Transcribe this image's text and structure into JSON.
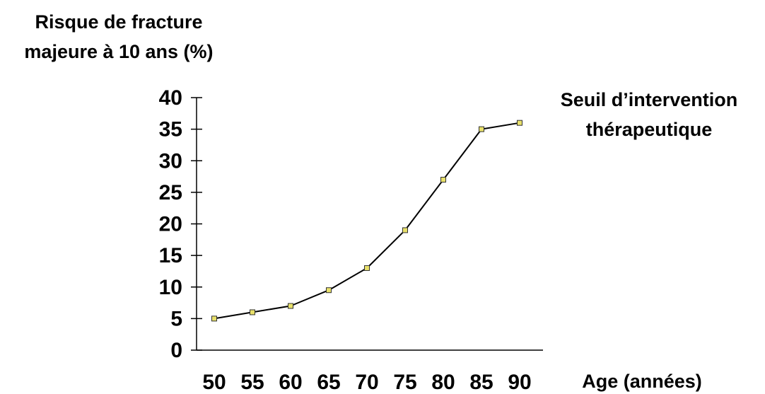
{
  "chart_data": {
    "type": "line",
    "title_lines": [
      "Risque de fracture",
      "majeure à 10 ans (%)"
    ],
    "xlabel": "Age (années)",
    "annotation_lines": [
      "Seuil d’intervention",
      "thérapeutique"
    ],
    "x": [
      50,
      55,
      60,
      65,
      70,
      75,
      80,
      85,
      90
    ],
    "y": [
      5,
      6,
      7,
      9.5,
      13,
      19,
      27,
      35,
      36
    ],
    "xticks": [
      "50",
      "55",
      "60",
      "65",
      "70",
      "75",
      "80",
      "85",
      "90"
    ],
    "yticks": [
      "0",
      "5",
      "10",
      "15",
      "20",
      "25",
      "30",
      "35",
      "40"
    ],
    "ylim": [
      0,
      40
    ],
    "marker": "square",
    "line_color": "#000000",
    "marker_color": "#e8e06a",
    "grid": false
  }
}
